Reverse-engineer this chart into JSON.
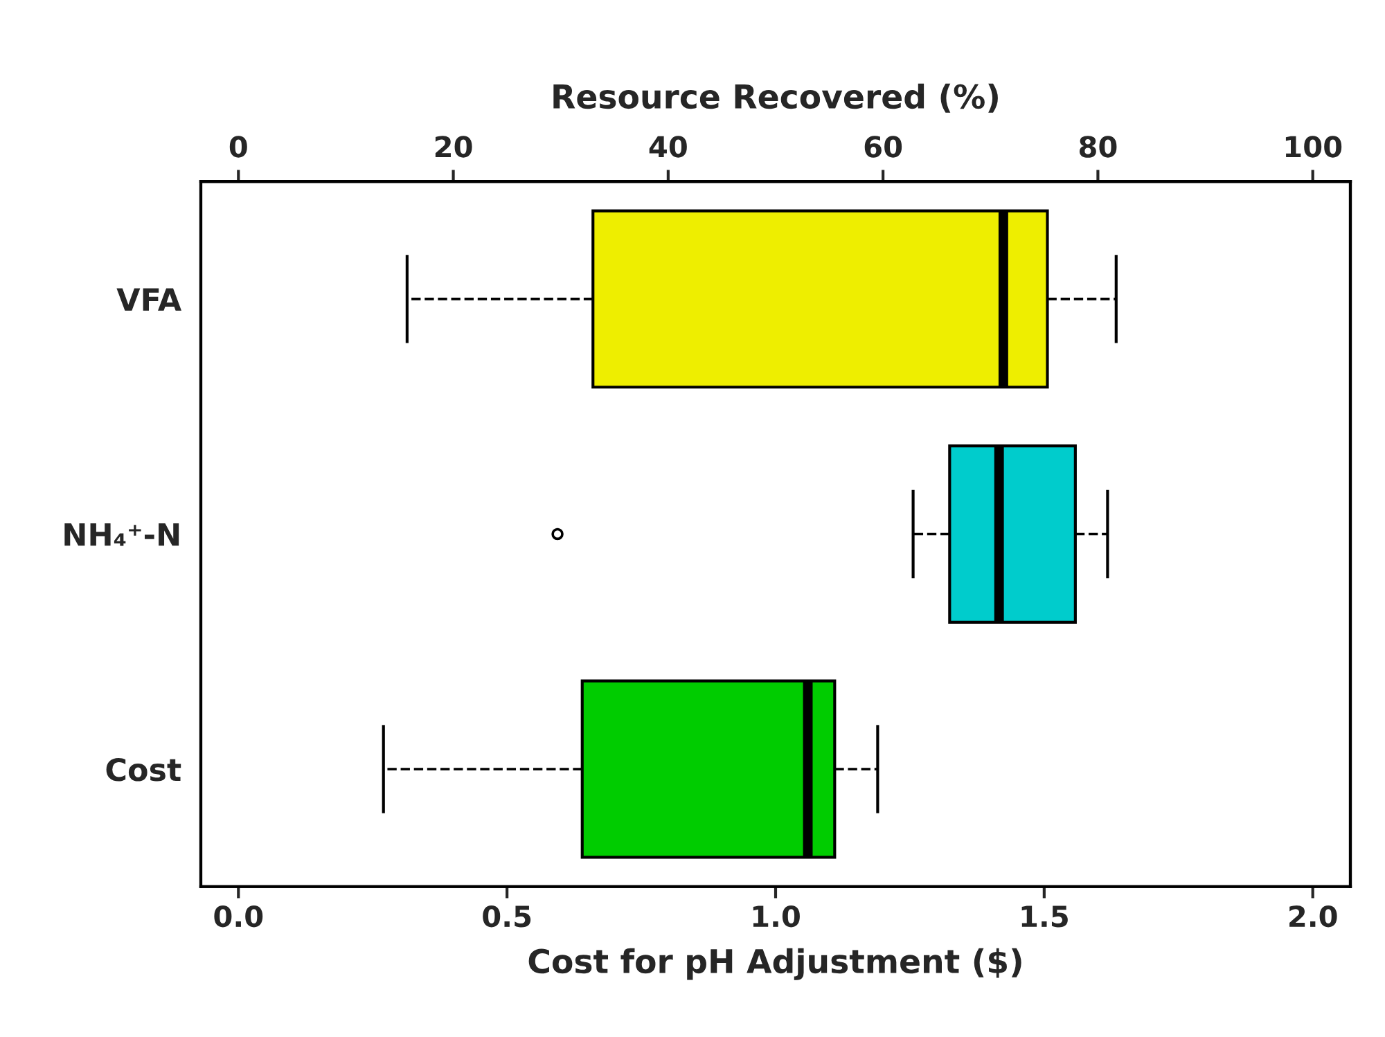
{
  "chart_data": {
    "type": "box",
    "orientation": "horizontal",
    "xlabel": "Cost for pH Adjustment ($)",
    "x2label": "Resource Recovered (%)",
    "categories": [
      "VFA",
      "NH₄⁺-N",
      "Cost"
    ],
    "xlim": [
      -0.07,
      2.07
    ],
    "xticks": [
      {
        "value": 0,
        "label": "0.0"
      },
      0.5,
      {
        "value": 1,
        "label": "1.0"
      },
      1.5,
      {
        "value": 2,
        "label": "2.0"
      }
    ],
    "x2lim": [
      -3.5,
      103.5
    ],
    "x2ticks": [
      0,
      20,
      40,
      60,
      80,
      100
    ],
    "series": [
      {
        "axis": "x2",
        "colors": [
          "#eeee00",
          "#00cccc",
          null
        ],
        "boxes": [
          {
            "low": 15.7,
            "q1": 33,
            "median": 71.2,
            "q3": 75.3,
            "high": 81.7
          },
          {
            "low": 62.8,
            "q1": 66.2,
            "median": 70.8,
            "q3": 77.9,
            "high": 80.9,
            "outliers": [
              29.7
            ]
          },
          null
        ]
      },
      {
        "colors": [
          null,
          null,
          "#00cc00"
        ],
        "boxes": [
          null,
          null,
          {
            "low": 0.27,
            "q1": 0.64,
            "median": 1.06,
            "q3": 1.11,
            "high": 1.19
          }
        ]
      }
    ],
    "line_style": "dashed",
    "marker": "circle",
    "grid": false,
    "legend": false
  }
}
